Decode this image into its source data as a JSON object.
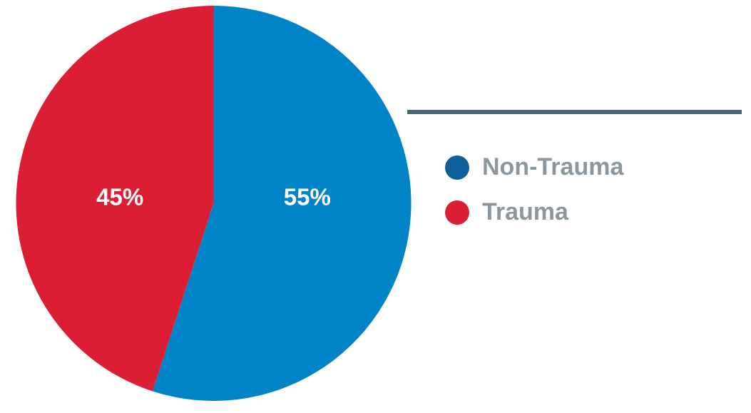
{
  "chart_data": {
    "type": "pie",
    "categories": [
      "Non-Trauma",
      "Trauma"
    ],
    "values": [
      55,
      45
    ],
    "value_labels": [
      "55%",
      "45%"
    ],
    "colors": [
      "#0083c7",
      "#dc1e35"
    ],
    "legend_colors": [
      "#0f5e99",
      "#dc1e35"
    ]
  }
}
